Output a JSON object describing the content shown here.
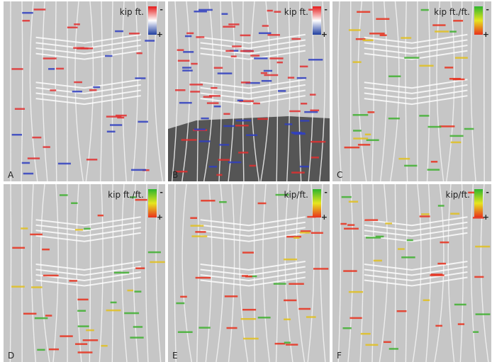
{
  "panels": [
    {
      "label": "A",
      "unit": "kip ft.",
      "legend": {
        "top": "-",
        "bottom": "+"
      }
    },
    {
      "label": "B",
      "unit": "kip ft.",
      "legend": {
        "top": "-",
        "bottom": "+"
      }
    },
    {
      "label": "C",
      "unit": "kip ft./ft.",
      "legend": {
        "top": "-",
        "bottom": "+"
      }
    },
    {
      "label": "D",
      "unit": "kip ft./ft.",
      "legend": {
        "top": "-",
        "bottom": "+"
      }
    },
    {
      "label": "E",
      "unit": "kip/ft.",
      "legend": {
        "top": "-",
        "bottom": "+"
      }
    },
    {
      "label": "F",
      "unit": "kip/ft.",
      "legend": {
        "top": "-",
        "bottom": "+"
      }
    }
  ]
}
